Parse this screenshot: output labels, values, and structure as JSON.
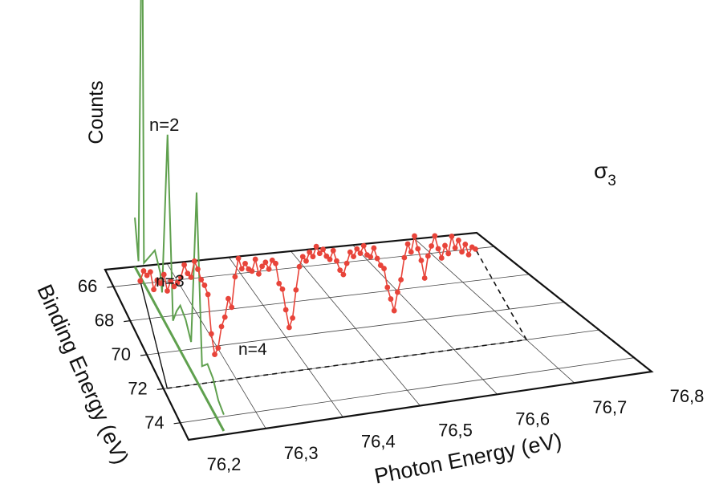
{
  "chart_data": {
    "type": "line",
    "view": "3d-perspective",
    "z_label": "Counts",
    "x_axis": {
      "label": "Photon Energy (eV)",
      "ticks": [
        "76,2",
        "76,3",
        "76,4",
        "76,5",
        "76,6",
        "76,7",
        "76,8"
      ],
      "range": [
        76.2,
        76.8
      ]
    },
    "y_axis": {
      "label": "Binding Energy (eV)",
      "ticks": [
        "66",
        "68",
        "70",
        "72",
        "74"
      ],
      "range": [
        65,
        75
      ]
    },
    "annotations": [
      "n=2",
      "n=3",
      "n=4"
    ],
    "sigma_label": {
      "symbol": "σ",
      "subscript": "3"
    },
    "colors": {
      "sigma": "#e8443a",
      "spectrum": "#5fa04e",
      "axes": "#111111"
    },
    "photoelectron_spectrum": {
      "photon_energy": 76.2,
      "binding_energy": [
        65.0,
        65.4,
        65.8,
        66.0,
        66.6,
        67.2,
        67.8,
        68.0,
        68.6,
        69.2,
        69.6,
        70.0,
        70.6,
        71.2,
        71.8,
        72.4,
        73.0,
        73.6,
        74.2,
        74.8
      ],
      "counts": [
        0.12,
        0.03,
        1.0,
        0.05,
        0.09,
        0.13,
        0.1,
        0.06,
        0.47,
        0.04,
        0.08,
        0.11,
        0.1,
        0.07,
        0.46,
        0.06,
        0.09,
        0.08,
        0.05,
        0.04
      ]
    },
    "sigma3": {
      "photon_energy": [
        76.205,
        76.21,
        76.215,
        76.22,
        76.225,
        76.23,
        76.235,
        76.24,
        76.245,
        76.25,
        76.255,
        76.26,
        76.265,
        76.27,
        76.275,
        76.28,
        76.285,
        76.29,
        76.295,
        76.3,
        76.305,
        76.31,
        76.315,
        76.32,
        76.325,
        76.33,
        76.335,
        76.34,
        76.345,
        76.35,
        76.355,
        76.36,
        76.365,
        76.37,
        76.375,
        76.38,
        76.385,
        76.39,
        76.395,
        76.4,
        76.405,
        76.41,
        76.415,
        76.42,
        76.425,
        76.43,
        76.435,
        76.44,
        76.445,
        76.45,
        76.455,
        76.46,
        76.465,
        76.47,
        76.475,
        76.48,
        76.485,
        76.49,
        76.495,
        76.5,
        76.505,
        76.51,
        76.515,
        76.52,
        76.525,
        76.53,
        76.535,
        76.54,
        76.545,
        76.55,
        76.555,
        76.56,
        76.565,
        76.57,
        76.575,
        76.58,
        76.585,
        76.59,
        76.595,
        76.6,
        76.605,
        76.61,
        76.615,
        76.62,
        76.625,
        76.63,
        76.635,
        76.64,
        76.645,
        76.65,
        76.655,
        76.66,
        76.665,
        76.67,
        76.675,
        76.68,
        76.685,
        76.69,
        76.695,
        76.7
      ],
      "value": [
        0.72,
        0.88,
        0.8,
        0.85,
        0.55,
        0.7,
        0.64,
        0.78,
        0.5,
        0.66,
        0.56,
        0.62,
        0.7,
        0.9,
        0.75,
        0.68,
        0.94,
        0.8,
        0.62,
        0.52,
        0.36,
        -0.3,
        -0.65,
        -0.55,
        -0.2,
        -0.05,
        0.25,
        0.1,
        0.6,
        0.9,
        0.72,
        0.8,
        0.7,
        0.66,
        0.85,
        0.6,
        0.72,
        0.78,
        0.66,
        0.8,
        0.74,
        0.4,
        0.3,
        -0.05,
        -0.35,
        -0.2,
        0.26,
        0.64,
        0.8,
        0.72,
        0.86,
        0.78,
        0.94,
        0.82,
        0.88,
        0.76,
        0.7,
        0.84,
        0.66,
        0.5,
        0.42,
        0.6,
        0.78,
        0.7,
        0.82,
        0.74,
        0.86,
        0.7,
        0.66,
        0.8,
        0.62,
        0.5,
        0.44,
        0.12,
        -0.08,
        -0.28,
        0.02,
        0.22,
        0.58,
        0.8,
        0.66,
        0.92,
        0.7,
        0.5,
        0.2,
        0.56,
        0.72,
        0.88,
        0.66,
        0.5,
        0.7,
        0.56,
        0.84,
        0.64,
        0.76,
        0.56,
        0.68,
        0.5,
        0.62,
        0.58
      ]
    }
  }
}
